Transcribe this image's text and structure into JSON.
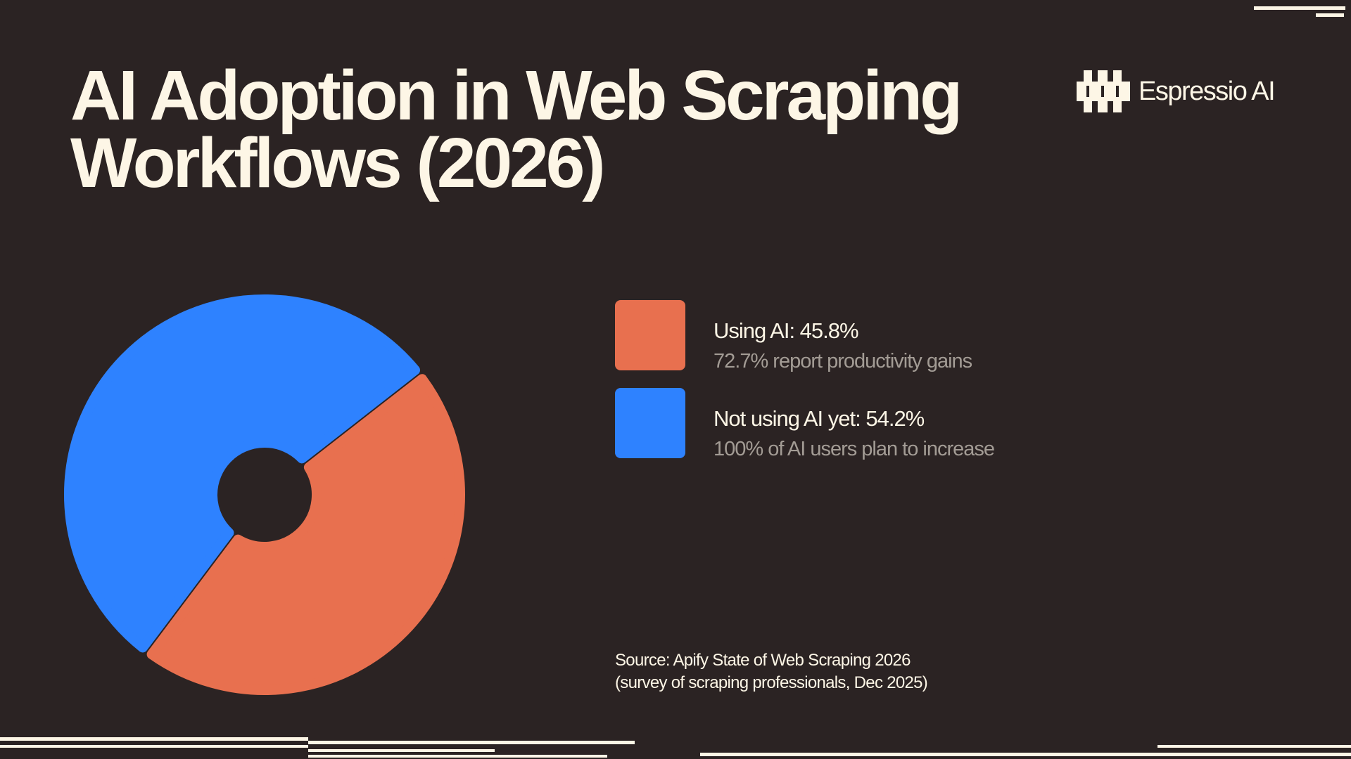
{
  "header": {
    "title_line1": "AI Adoption in Web Scraping",
    "title_line2": "Workflows (2026)"
  },
  "brand": {
    "name": "Espressio AI",
    "icon": "espressio-logo-icon"
  },
  "chart_data": {
    "type": "pie",
    "variant": "donut",
    "categories": [
      "Using AI",
      "Not using AI yet"
    ],
    "values": [
      45.8,
      54.2
    ],
    "unit": "%",
    "colors": [
      "#e8704f",
      "#2e82ff"
    ],
    "legend_position": "right"
  },
  "legend": [
    {
      "label": "Using AI: 45.8%",
      "sub": "72.7% report productivity gains",
      "color": "#e8704f"
    },
    {
      "label": "Not using AI yet: 54.2%",
      "sub": "100% of AI users plan to increase",
      "color": "#2e82ff"
    }
  ],
  "source": {
    "line1": "Source: Apify State of Web Scraping 2026",
    "line2": "(survey of scraping professionals, Dec 2025)"
  },
  "colors": {
    "background": "#2b2323",
    "text": "#fdf6e6",
    "muted_text": "#a39c95"
  }
}
